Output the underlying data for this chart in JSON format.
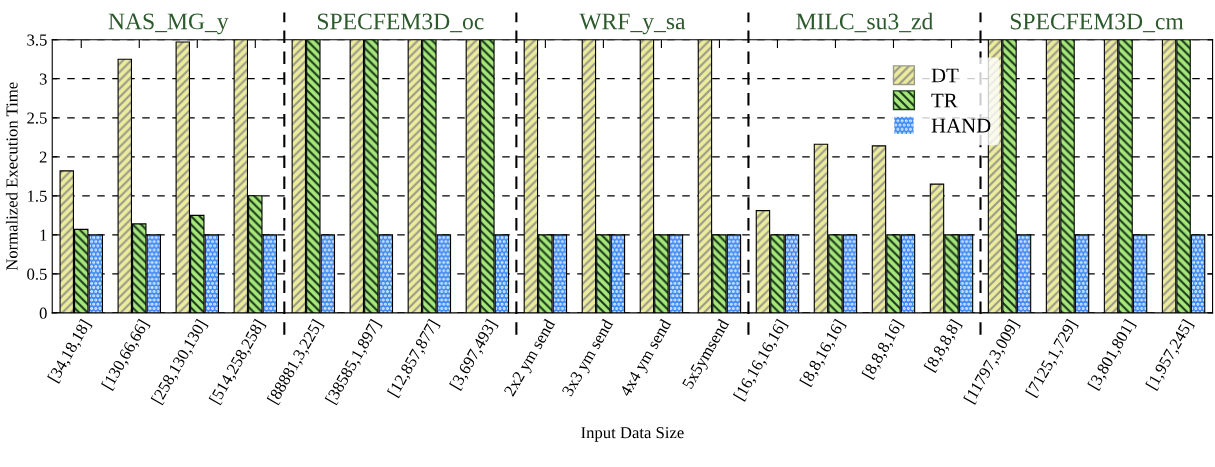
{
  "chart_data": {
    "type": "bar",
    "xlabel": "Input Data Size",
    "ylabel": "Normalized Execution Time",
    "categories": [
      "[34,18,18]",
      "[130,66,66]",
      "[258,130,130]",
      "[514,258,258]",
      "[88881,3,225]",
      "[38585,1,897]",
      "[12,857,877]",
      "[3,697,493]",
      "2x2 ym send",
      "3x3 ym send",
      "4x4 ym send",
      "5x5ymsend",
      "[16,16,16,16]",
      "[8,8,16,16]",
      "[8,8,8,16]",
      "[8,8,8,8]",
      "[11797,3,009]",
      "[7125,1,729]",
      "[3,801,801]",
      "[1,957,245]"
    ],
    "series": [
      {
        "name": "DT",
        "color": "#ecec9c",
        "values": [
          1.82,
          3.25,
          3.47,
          3.5,
          3.5,
          3.5,
          3.5,
          3.5,
          3.5,
          3.5,
          3.5,
          3.5,
          1.31,
          2.16,
          2.14,
          1.65,
          3.5,
          3.5,
          3.5,
          3.5
        ]
      },
      {
        "name": "TR",
        "color": "#a6e67a",
        "values": [
          1.07,
          1.14,
          1.25,
          1.5,
          3.5,
          3.5,
          3.5,
          3.5,
          1,
          1,
          1,
          1,
          1,
          1,
          1,
          1,
          3.5,
          3.5,
          3.5,
          3.5
        ]
      },
      {
        "name": "HAND",
        "color": "#3b88f2",
        "values": [
          1,
          1,
          1,
          1,
          1,
          1,
          1,
          1,
          1,
          1,
          1,
          1,
          1,
          1,
          1,
          1,
          1,
          1,
          1,
          1
        ]
      }
    ],
    "ylim": [
      0,
      3.5
    ],
    "yticks": [
      0,
      0.5,
      1,
      1.5,
      2,
      2.5,
      3,
      3.5
    ],
    "grid": "y",
    "legend": "top right",
    "annotations": [
      "NAS_MG_y",
      "SPECFEM3D_oc",
      "WRF_y_sa",
      "MILC_su3_zd",
      "SPECFEM3D_cm"
    ]
  }
}
